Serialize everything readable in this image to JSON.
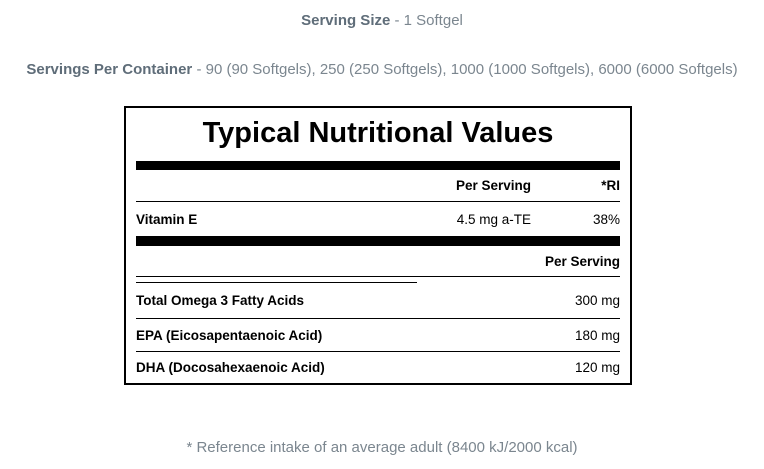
{
  "serving_size": {
    "label": "Serving Size",
    "value": "- 1 Softgel"
  },
  "servings_per_container": {
    "label": "Servings Per Container",
    "value": "- 90 (90 Softgels), 250 (250 Softgels), 1000 (1000 Softgels), 6000 (6000 Softgels)"
  },
  "nutrition_panel": {
    "title": "Typical Nutritional Values",
    "section1": {
      "header_per_serving": "Per Serving",
      "header_ri": "*RI",
      "rows": [
        {
          "name": "Vitamin E",
          "per_serving": "4.5 mg a-TE",
          "ri": "38%"
        }
      ]
    },
    "section2": {
      "header_per_serving": "Per Serving",
      "rows": [
        {
          "name": "Total Omega 3 Fatty Acids",
          "per_serving": "300 mg"
        },
        {
          "name": "EPA (Eicosapentaenoic Acid)",
          "per_serving": "180 mg"
        },
        {
          "name": "DHA (Docosahexaenoic Acid)",
          "per_serving": "120 mg"
        }
      ]
    }
  },
  "footnote": "* Reference intake of an average adult (8400 kJ/2000 kcal)",
  "colors": {
    "meta_text_bold": "#5f6d79",
    "meta_text_regular": "#7b868f",
    "panel_border": "#000000",
    "divider_bar": "#000000",
    "table_text": "#000000",
    "background": "#ffffff"
  }
}
